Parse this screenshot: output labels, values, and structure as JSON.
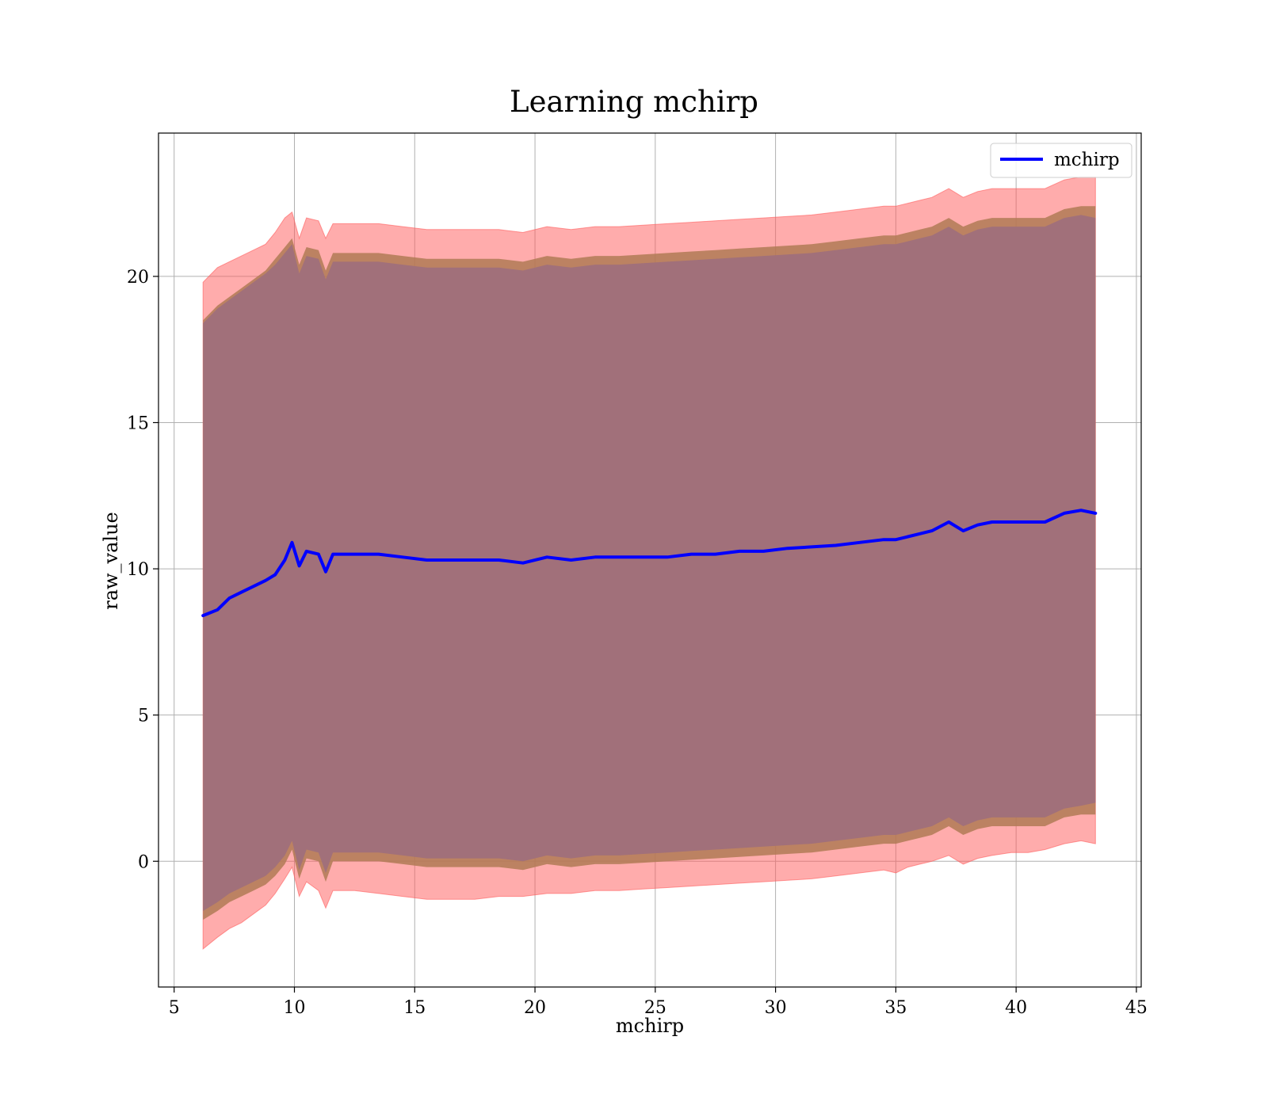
{
  "chart_data": {
    "type": "area",
    "title": "Learning mchirp",
    "xlabel": "mchirp",
    "ylabel": "raw_value",
    "xlim": [
      4.35,
      45.2
    ],
    "ylim": [
      -4.3,
      24.9
    ],
    "xticks": [
      5,
      10,
      15,
      20,
      25,
      30,
      35,
      40,
      45
    ],
    "yticks": [
      0,
      5,
      10,
      15,
      20
    ],
    "grid": true,
    "legend": {
      "position": "top-right",
      "entries": [
        "mchirp"
      ]
    },
    "colors": {
      "line": "#0000ff",
      "outer_band": "#ff5a5a",
      "middle_band": "#b07a55",
      "inner_band": "#a1707a"
    },
    "series": [
      {
        "name": "mchirp",
        "x": [
          6.2,
          6.8,
          7.3,
          7.8,
          8.3,
          8.8,
          9.2,
          9.6,
          9.9,
          10.2,
          10.5,
          11.0,
          11.3,
          11.6,
          12.5,
          13.5,
          14.5,
          15.5,
          16.5,
          17.5,
          18.5,
          19.5,
          20.5,
          21.5,
          22.5,
          23.5,
          24.5,
          25.5,
          26.5,
          27.5,
          28.5,
          29.5,
          30.5,
          31.5,
          32.5,
          33.5,
          34.5,
          35.0,
          35.5,
          36.0,
          36.5,
          37.2,
          37.8,
          38.4,
          39.0,
          39.8,
          40.5,
          41.2,
          42.0,
          42.7,
          43.3
        ],
        "y": [
          8.4,
          8.6,
          9.0,
          9.2,
          9.4,
          9.6,
          9.8,
          10.3,
          10.9,
          10.1,
          10.6,
          10.5,
          9.9,
          10.5,
          10.5,
          10.5,
          10.4,
          10.3,
          10.3,
          10.3,
          10.3,
          10.2,
          10.4,
          10.3,
          10.4,
          10.4,
          10.4,
          10.4,
          10.5,
          10.5,
          10.6,
          10.6,
          10.7,
          10.75,
          10.8,
          10.9,
          11.0,
          11.0,
          11.1,
          11.2,
          11.3,
          11.6,
          11.3,
          11.5,
          11.6,
          11.6,
          11.6,
          11.6,
          11.9,
          12.0,
          11.9
        ]
      }
    ],
    "bands": {
      "outer_upper": [
        19.8,
        20.3,
        20.5,
        20.7,
        20.9,
        21.1,
        21.5,
        22.0,
        22.2,
        21.3,
        22.0,
        21.9,
        21.3,
        21.8,
        21.8,
        21.8,
        21.7,
        21.6,
        21.6,
        21.6,
        21.6,
        21.5,
        21.7,
        21.6,
        21.7,
        21.7,
        21.75,
        21.8,
        21.85,
        21.9,
        21.95,
        22.0,
        22.05,
        22.1,
        22.2,
        22.3,
        22.4,
        22.4,
        22.5,
        22.6,
        22.7,
        23.0,
        22.7,
        22.9,
        23.0,
        23.0,
        23.0,
        23.0,
        23.3,
        23.4,
        23.4
      ],
      "middle_upper": [
        18.5,
        19.0,
        19.3,
        19.6,
        19.9,
        20.2,
        20.6,
        21.0,
        21.3,
        20.4,
        21.0,
        20.9,
        20.2,
        20.8,
        20.8,
        20.8,
        20.7,
        20.6,
        20.6,
        20.6,
        20.6,
        20.5,
        20.7,
        20.6,
        20.7,
        20.7,
        20.75,
        20.8,
        20.85,
        20.9,
        20.95,
        21.0,
        21.05,
        21.1,
        21.2,
        21.3,
        21.4,
        21.4,
        21.5,
        21.6,
        21.7,
        22.0,
        21.7,
        21.9,
        22.0,
        22.0,
        22.0,
        22.0,
        22.3,
        22.4,
        22.4
      ],
      "inner_upper": [
        18.4,
        18.9,
        19.2,
        19.5,
        19.8,
        20.1,
        20.4,
        20.8,
        21.1,
        20.1,
        20.7,
        20.6,
        19.9,
        20.5,
        20.5,
        20.5,
        20.4,
        20.3,
        20.3,
        20.3,
        20.3,
        20.2,
        20.4,
        20.3,
        20.4,
        20.4,
        20.45,
        20.5,
        20.55,
        20.6,
        20.65,
        20.7,
        20.75,
        20.8,
        20.9,
        21.0,
        21.1,
        21.1,
        21.2,
        21.3,
        21.4,
        21.7,
        21.4,
        21.6,
        21.7,
        21.7,
        21.7,
        21.7,
        22.0,
        22.1,
        22.0
      ],
      "inner_lower": [
        -1.7,
        -1.4,
        -1.1,
        -0.9,
        -0.7,
        -0.5,
        -0.2,
        0.2,
        0.7,
        -0.3,
        0.4,
        0.3,
        -0.4,
        0.3,
        0.3,
        0.3,
        0.2,
        0.1,
        0.1,
        0.1,
        0.1,
        0.0,
        0.2,
        0.1,
        0.2,
        0.2,
        0.25,
        0.3,
        0.35,
        0.4,
        0.45,
        0.5,
        0.55,
        0.6,
        0.7,
        0.8,
        0.9,
        0.9,
        1.0,
        1.1,
        1.2,
        1.5,
        1.2,
        1.4,
        1.5,
        1.5,
        1.5,
        1.5,
        1.8,
        1.9,
        2.0
      ],
      "middle_lower": [
        -2.0,
        -1.7,
        -1.4,
        -1.2,
        -1.0,
        -0.8,
        -0.5,
        -0.1,
        0.4,
        -0.6,
        0.1,
        0.0,
        -0.7,
        0.0,
        0.0,
        0.0,
        -0.1,
        -0.2,
        -0.2,
        -0.2,
        -0.2,
        -0.3,
        -0.1,
        -0.2,
        -0.1,
        -0.1,
        -0.05,
        0.0,
        0.05,
        0.1,
        0.15,
        0.2,
        0.25,
        0.3,
        0.4,
        0.5,
        0.6,
        0.6,
        0.7,
        0.8,
        0.9,
        1.2,
        0.9,
        1.1,
        1.2,
        1.2,
        1.2,
        1.2,
        1.5,
        1.6,
        1.6
      ],
      "outer_lower": [
        -3.0,
        -2.6,
        -2.3,
        -2.1,
        -1.8,
        -1.5,
        -1.1,
        -0.6,
        -0.2,
        -1.2,
        -0.7,
        -1.0,
        -1.6,
        -1.0,
        -1.0,
        -1.1,
        -1.2,
        -1.3,
        -1.3,
        -1.3,
        -1.2,
        -1.2,
        -1.1,
        -1.1,
        -1.0,
        -1.0,
        -0.95,
        -0.9,
        -0.85,
        -0.8,
        -0.75,
        -0.7,
        -0.65,
        -0.6,
        -0.5,
        -0.4,
        -0.3,
        -0.4,
        -0.2,
        -0.1,
        0.0,
        0.2,
        -0.1,
        0.1,
        0.2,
        0.3,
        0.3,
        0.4,
        0.6,
        0.7,
        0.6
      ]
    }
  }
}
